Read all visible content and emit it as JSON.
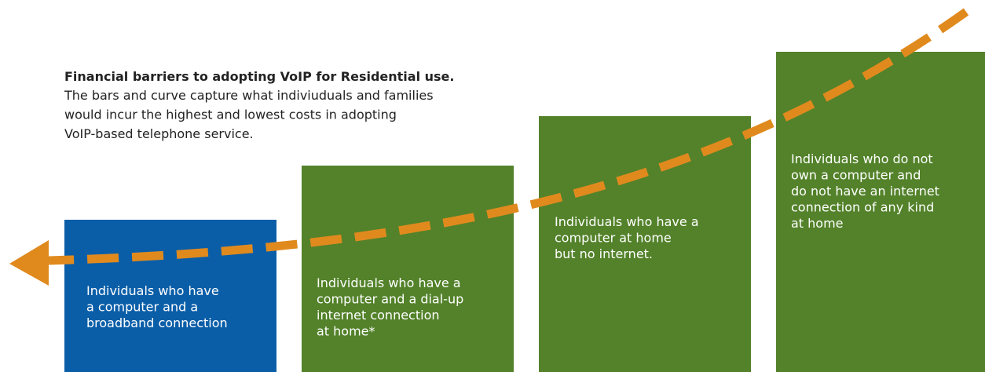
{
  "header": {
    "title": "Financial barriers to adopting VoIP for Residential use.",
    "description": [
      "The bars and curve capture what indiviuduals and families",
      "would incur the highest and lowest costs in adopting",
      "VoIP-based telephone service."
    ]
  },
  "bars": [
    {
      "lines": [
        "Individuals who have",
        "a computer and a",
        "broadband connection"
      ]
    },
    {
      "lines": [
        "Individuals who have a",
        "computer and a dial-up",
        "internet connection",
        "at home*"
      ]
    },
    {
      "lines": [
        "Individuals who have a",
        "computer at home",
        "but no internet."
      ]
    },
    {
      "lines": [
        "Individuals who do not",
        "own a computer and",
        "do not have an internet",
        "connection of any kind",
        "at home"
      ]
    }
  ]
}
